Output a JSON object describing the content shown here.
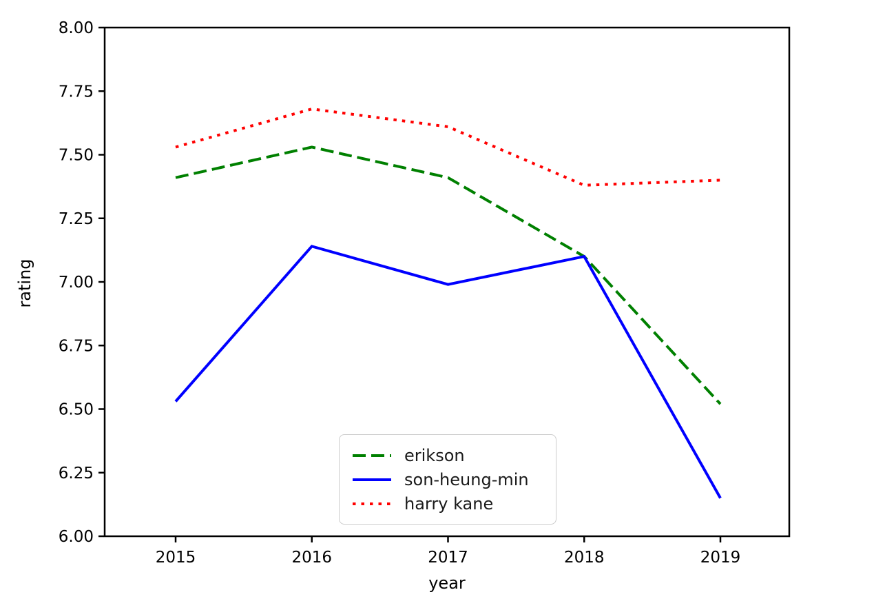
{
  "chart_data": {
    "type": "line",
    "title": "",
    "xlabel": "year",
    "ylabel": "rating",
    "categories": [
      2015,
      2016,
      2017,
      2018,
      2019
    ],
    "x_tick_labels": [
      "2015",
      "2016",
      "2017",
      "2018",
      "2019"
    ],
    "y_tick_labels": [
      "6.00",
      "6.25",
      "6.50",
      "6.75",
      "7.00",
      "7.25",
      "7.50",
      "7.75",
      "8.00"
    ],
    "ylim": [
      6.0,
      8.0
    ],
    "grid": false,
    "legend_position": "lower center",
    "series": [
      {
        "name": "erikson",
        "color": "#008000",
        "style": "dashed",
        "values": [
          7.41,
          7.53,
          7.41,
          7.1,
          6.52
        ]
      },
      {
        "name": "son-heung-min",
        "color": "#0000ff",
        "style": "solid",
        "values": [
          6.53,
          7.14,
          6.99,
          7.1,
          6.15
        ]
      },
      {
        "name": "harry kane",
        "color": "#ff0000",
        "style": "dotted",
        "values": [
          7.53,
          7.68,
          7.61,
          7.38,
          7.4
        ]
      }
    ]
  }
}
